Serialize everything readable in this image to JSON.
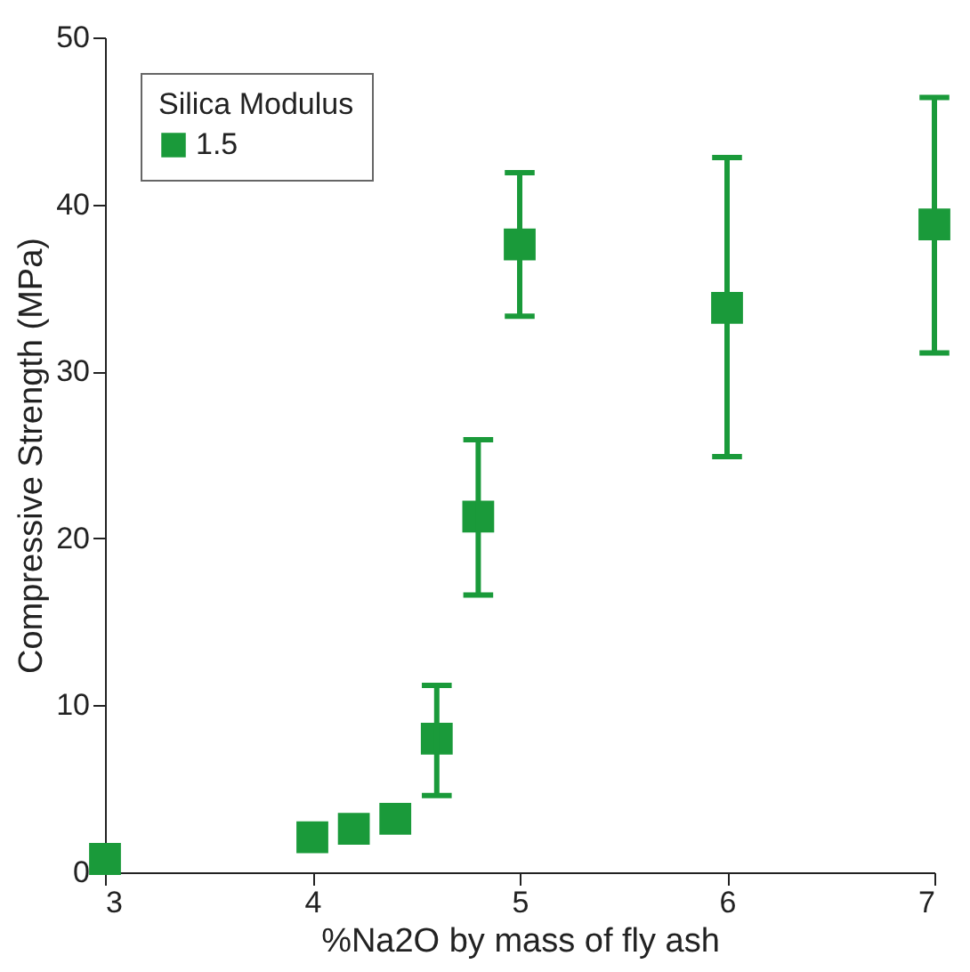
{
  "chart_data": {
    "type": "scatter",
    "xlabel": "%Na2O by mass of fly ash",
    "ylabel": "Compressive Strength (MPa)",
    "legend_title": "Silica Modulus",
    "legend": "top left",
    "marker": "square",
    "grid": false,
    "x": [
      3,
      4,
      4.2,
      4.4,
      4.6,
      4.8,
      5,
      6,
      7
    ],
    "series": [
      {
        "name": "1.5",
        "color": "#1a9a3a",
        "values": [
          0.8,
          2.1,
          2.6,
          3.2,
          8.0,
          21.3,
          37.6,
          33.8,
          38.8
        ],
        "errors": [
          null,
          null,
          null,
          null,
          [
            4.6,
            11.2
          ],
          [
            16.6,
            25.9
          ],
          [
            33.3,
            41.9
          ],
          [
            24.9,
            42.8
          ],
          [
            31.1,
            46.4
          ]
        ]
      }
    ],
    "xlim": [
      3,
      7
    ],
    "xticks": [
      3,
      4,
      5,
      6,
      7
    ],
    "ylim": [
      0,
      50
    ],
    "yticks": [
      0,
      10,
      20,
      30,
      40,
      50
    ]
  }
}
